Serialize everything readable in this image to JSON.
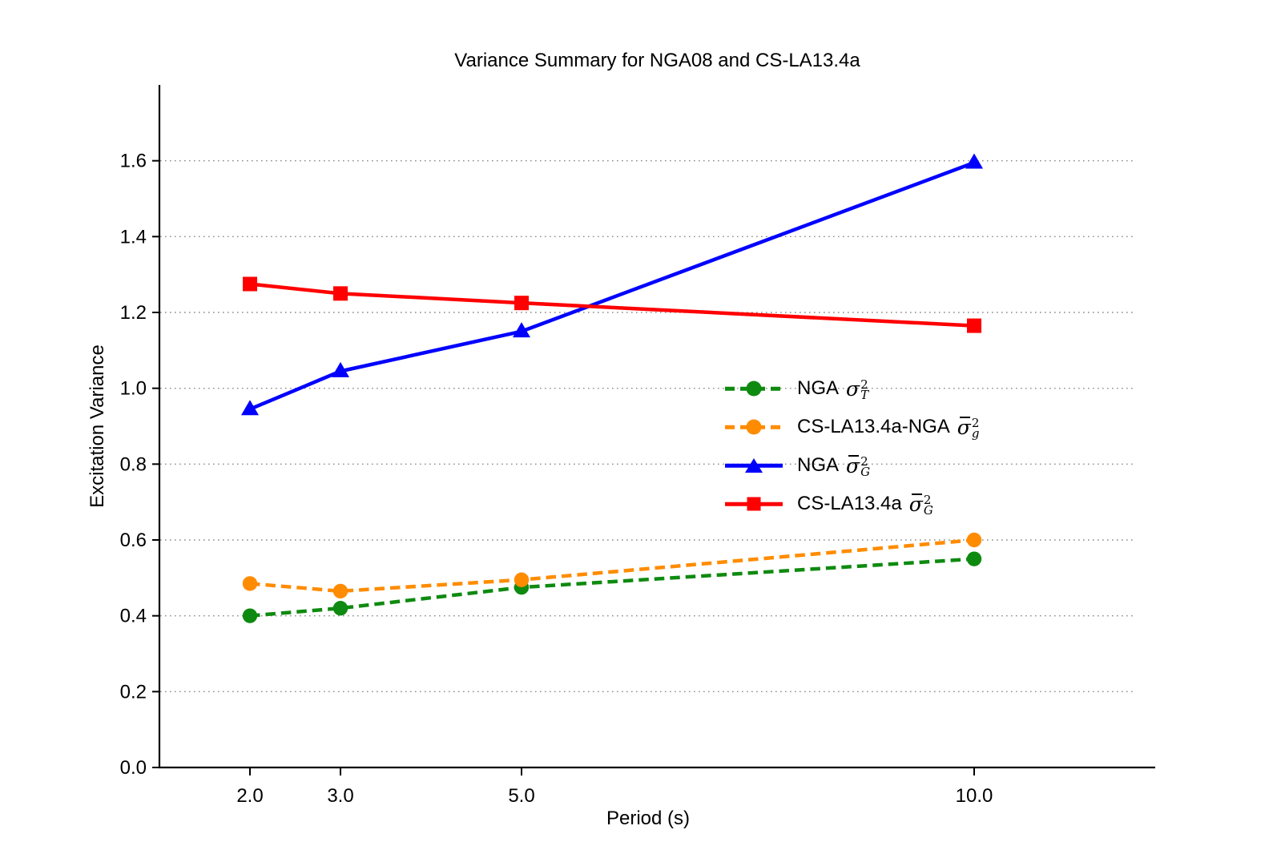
{
  "chart_data": {
    "type": "line",
    "title": "Variance Summary for NGA08 and CS-LA13.4a",
    "xlabel": "Period (s)",
    "ylabel": "Excitation Variance",
    "x": [
      2.0,
      3.0,
      5.0,
      10.0
    ],
    "xlim": [
      1.0,
      12.0
    ],
    "ylim": [
      0.0,
      1.8
    ],
    "xtick_values": [
      2.0,
      3.0,
      5.0,
      10.0
    ],
    "xtick_labels": [
      "2.0",
      "3.0",
      "5.0",
      "10.0"
    ],
    "ytick_values": [
      0.0,
      0.2,
      0.4,
      0.6,
      0.8,
      1.0,
      1.2,
      1.4,
      1.6
    ],
    "ytick_labels": [
      "0.0",
      "0.2",
      "0.4",
      "0.6",
      "0.8",
      "1.0",
      "1.2",
      "1.4",
      "1.6"
    ],
    "grid": {
      "axis": "y",
      "style": "dotted",
      "color": "#8a8a8a",
      "skip_values": [
        0.0
      ]
    },
    "legend_position": "center-right",
    "series": [
      {
        "name": "NGA sigma_T_squared",
        "label": {
          "prefix": "NGA",
          "sigma": "σ",
          "bar": false,
          "sup": "2",
          "sub": "T"
        },
        "color": "#0f8a10",
        "linestyle": "dashed",
        "marker": "circle",
        "values": [
          0.4,
          0.42,
          0.475,
          0.55
        ]
      },
      {
        "name": "CS-LA13.4a-NGA sigmabar_g_squared",
        "label": {
          "prefix": "CS-LA13.4a-NGA",
          "sigma": "σ",
          "bar": true,
          "sup": "2",
          "sub": "g"
        },
        "color": "#ff8c00",
        "linestyle": "dashed",
        "marker": "circle",
        "values": [
          0.485,
          0.465,
          0.495,
          0.6
        ]
      },
      {
        "name": "NGA sigmabar_G_squared",
        "label": {
          "prefix": "NGA",
          "sigma": "σ",
          "bar": true,
          "sup": "2",
          "sub": "G"
        },
        "color": "#0000ff",
        "linestyle": "solid",
        "marker": "triangle",
        "values": [
          0.945,
          1.045,
          1.15,
          1.595
        ]
      },
      {
        "name": "CS-LA13.4a sigmabar_G_squared",
        "label": {
          "prefix": "CS-LA13.4a",
          "sigma": "σ",
          "bar": true,
          "sup": "2",
          "sub": "G"
        },
        "color": "#ff0000",
        "linestyle": "solid",
        "marker": "square",
        "values": [
          1.275,
          1.25,
          1.225,
          1.165
        ]
      }
    ],
    "axis_color": "#000000",
    "tick_font_size": 24
  }
}
